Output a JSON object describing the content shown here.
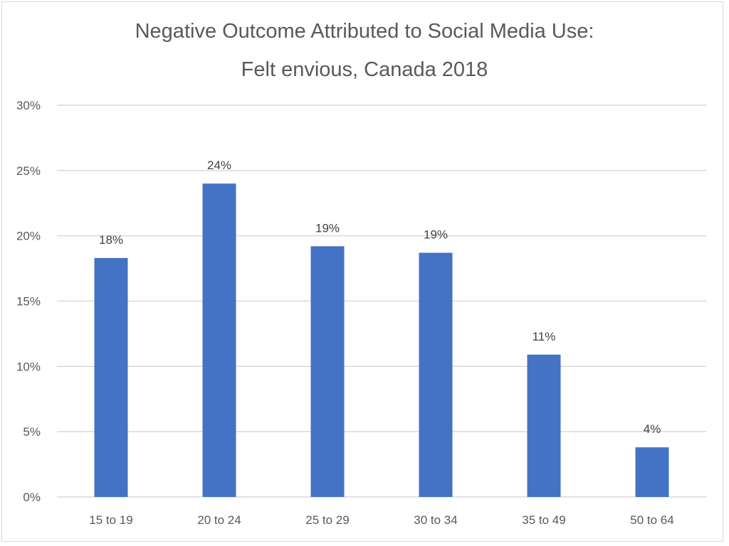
{
  "chart_data": {
    "type": "bar",
    "title": "Negative Outcome Attributed to Social Media Use:",
    "subtitle": "Felt envious, Canada 2018",
    "xlabel": "",
    "ylabel": "",
    "categories": [
      "15 to 19",
      "20 to 24",
      "25 to 29",
      "30 to 34",
      "35 to 49",
      "50 to 64"
    ],
    "values": [
      18.3,
      24.0,
      19.2,
      18.7,
      10.9,
      3.8
    ],
    "data_labels": [
      "18%",
      "24%",
      "19%",
      "19%",
      "11%",
      "4%"
    ],
    "ylim": [
      0,
      30
    ],
    "yticks": [
      0,
      5,
      10,
      15,
      20,
      25,
      30
    ],
    "ytick_labels": [
      "0%",
      "5%",
      "10%",
      "15%",
      "20%",
      "25%",
      "30%"
    ],
    "grid": true,
    "legend": "none",
    "bar_color": "#4472c4",
    "grid_color": "#d9d9d9"
  }
}
